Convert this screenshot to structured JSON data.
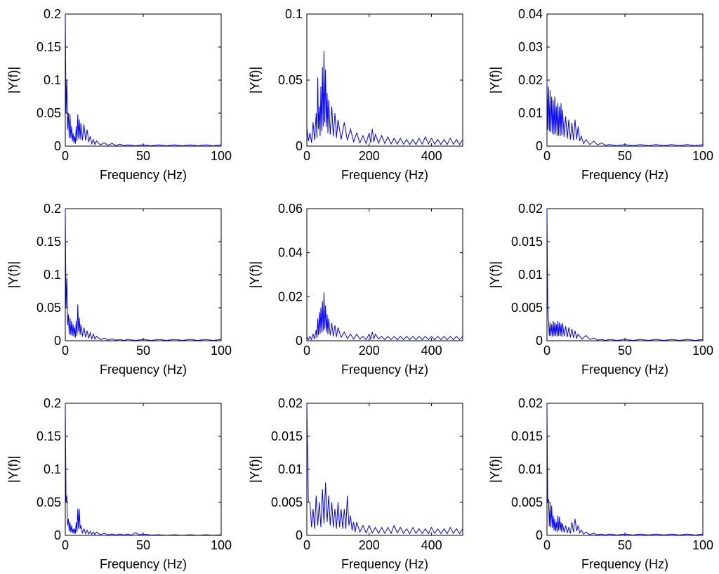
{
  "chart_data": [
    {
      "type": "line",
      "xlabel": "Frequency (Hz)",
      "ylabel": "|Y(f)|",
      "xlim": [
        0,
        100
      ],
      "ylim": [
        0,
        0.2
      ],
      "xticks": [
        "0",
        "50",
        "100"
      ],
      "yticks": [
        "0",
        "0.05",
        "0.1",
        "0.15",
        "0.2"
      ],
      "series": [
        {
          "color": "#0000ff",
          "x": [
            0,
            1,
            2,
            3,
            4,
            5,
            6,
            7,
            8,
            9,
            10,
            12,
            14,
            16,
            18,
            20,
            25,
            30,
            35,
            40,
            50,
            60,
            70,
            80,
            90,
            100
          ],
          "y": [
            0.2,
            0.1,
            0.05,
            0.049,
            0.03,
            0.02,
            0.015,
            0.03,
            0.048,
            0.04,
            0.035,
            0.033,
            0.025,
            0.015,
            0.01,
            0.008,
            0.005,
            0.004,
            0.003,
            0.002,
            0.002,
            0.002,
            0.002,
            0.002,
            0.002,
            0.002
          ]
        }
      ]
    },
    {
      "type": "line",
      "xlabel": "Frequency (Hz)",
      "ylabel": "|Y(f)|",
      "xlim": [
        0,
        500
      ],
      "ylim": [
        0,
        0.1
      ],
      "xticks": [
        "0",
        "200",
        "400"
      ],
      "yticks": [
        "0",
        "0.05",
        "0.1"
      ],
      "series": [
        {
          "color": "#0000ff",
          "x": [
            0,
            10,
            20,
            30,
            35,
            40,
            45,
            50,
            55,
            60,
            65,
            70,
            80,
            90,
            100,
            120,
            140,
            160,
            180,
            200,
            210,
            220,
            240,
            260,
            280,
            300,
            320,
            340,
            360,
            380,
            400,
            420,
            440,
            460,
            480,
            500
          ],
          "y": [
            0.015,
            0.01,
            0.018,
            0.025,
            0.052,
            0.03,
            0.045,
            0.06,
            0.072,
            0.058,
            0.04,
            0.035,
            0.03,
            0.025,
            0.02,
            0.018,
            0.013,
            0.01,
            0.008,
            0.01,
            0.013,
            0.009,
            0.008,
            0.007,
            0.006,
            0.006,
            0.005,
            0.005,
            0.006,
            0.007,
            0.006,
            0.005,
            0.005,
            0.006,
            0.005,
            0.005
          ]
        }
      ]
    },
    {
      "type": "line",
      "xlabel": "Frequency (Hz)",
      "ylabel": "|Y(f)|",
      "xlim": [
        0,
        100
      ],
      "ylim": [
        0,
        0.04
      ],
      "xticks": [
        "0",
        "50",
        "100"
      ],
      "yticks": [
        "0",
        "0.01",
        "0.02",
        "0.03",
        "0.04"
      ],
      "series": [
        {
          "color": "#0000ff",
          "x": [
            0,
            1,
            2,
            3,
            4,
            5,
            6,
            7,
            8,
            9,
            10,
            12,
            14,
            16,
            18,
            20,
            22,
            25,
            30,
            35,
            40,
            50,
            60,
            70,
            80,
            90,
            100
          ],
          "y": [
            0.02,
            0.018,
            0.017,
            0.015,
            0.014,
            0.015,
            0.012,
            0.013,
            0.012,
            0.013,
            0.011,
            0.009,
            0.008,
            0.007,
            0.008,
            0.006,
            0.003,
            0.002,
            0.0015,
            0.001,
            0.0005,
            0.0005,
            0.0005,
            0.0005,
            0.0005,
            0.0005,
            0.0005
          ]
        }
      ]
    },
    {
      "type": "line",
      "xlabel": "Frequency (Hz)",
      "ylabel": "|Y(f)|",
      "xlim": [
        0,
        100
      ],
      "ylim": [
        0,
        0.2
      ],
      "xticks": [
        "0",
        "50",
        "100"
      ],
      "yticks": [
        "0",
        "0.05",
        "0.1",
        "0.15",
        "0.2"
      ],
      "series": [
        {
          "color": "#0000ff",
          "x": [
            0,
            1,
            2,
            3,
            4,
            5,
            6,
            7,
            8,
            9,
            10,
            12,
            14,
            16,
            18,
            20,
            25,
            30,
            35,
            40,
            50,
            60,
            70,
            80,
            90,
            100
          ],
          "y": [
            0.2,
            0.095,
            0.04,
            0.035,
            0.03,
            0.025,
            0.02,
            0.03,
            0.055,
            0.035,
            0.025,
            0.02,
            0.015,
            0.012,
            0.01,
            0.007,
            0.004,
            0.003,
            0.002,
            0.002,
            0.002,
            0.002,
            0.002,
            0.002,
            0.002,
            0.002
          ]
        }
      ]
    },
    {
      "type": "line",
      "xlabel": "Frequency (Hz)",
      "ylabel": "|Y(f)|",
      "xlim": [
        0,
        500
      ],
      "ylim": [
        0,
        0.06
      ],
      "xticks": [
        "0",
        "200",
        "400"
      ],
      "yticks": [
        "0",
        "0.02",
        "0.04",
        "0.06"
      ],
      "series": [
        {
          "color": "#0000ff",
          "x": [
            0,
            10,
            20,
            30,
            35,
            40,
            45,
            50,
            55,
            60,
            65,
            70,
            80,
            90,
            100,
            120,
            140,
            160,
            180,
            200,
            210,
            220,
            240,
            260,
            280,
            300,
            320,
            340,
            360,
            380,
            400,
            420,
            440,
            460,
            480,
            500
          ],
          "y": [
            0.002,
            0.002,
            0.003,
            0.005,
            0.01,
            0.013,
            0.015,
            0.018,
            0.022,
            0.016,
            0.012,
            0.01,
            0.008,
            0.007,
            0.006,
            0.004,
            0.003,
            0.003,
            0.002,
            0.003,
            0.004,
            0.003,
            0.002,
            0.002,
            0.002,
            0.002,
            0.002,
            0.002,
            0.002,
            0.002,
            0.002,
            0.002,
            0.002,
            0.002,
            0.002,
            0.002
          ]
        }
      ]
    },
    {
      "type": "line",
      "xlabel": "Frequency (Hz)",
      "ylabel": "|Y(f)|",
      "xlim": [
        0,
        100
      ],
      "ylim": [
        0,
        0.02
      ],
      "xticks": [
        "0",
        "50",
        "100"
      ],
      "yticks": [
        "0",
        "0.005",
        "0.01",
        "0.015",
        "0.02"
      ],
      "series": [
        {
          "color": "#0000ff",
          "x": [
            0,
            1,
            2,
            3,
            4,
            5,
            6,
            7,
            8,
            9,
            10,
            12,
            14,
            16,
            18,
            20,
            25,
            30,
            35,
            40,
            50,
            60,
            70,
            80,
            90,
            100
          ],
          "y": [
            0.02,
            0.003,
            0.0028,
            0.0025,
            0.003,
            0.0028,
            0.0025,
            0.003,
            0.0028,
            0.0025,
            0.0027,
            0.0022,
            0.002,
            0.0018,
            0.0015,
            0.001,
            0.0008,
            0.0004,
            0.0002,
            0.0002,
            0.0002,
            0.0002,
            0.0002,
            0.0002,
            0.0002,
            0.0002
          ]
        }
      ]
    },
    {
      "type": "line",
      "xlabel": "Frequency (Hz)",
      "ylabel": "|Y(f)|",
      "xlim": [
        0,
        100
      ],
      "ylim": [
        0,
        0.2
      ],
      "xticks": [
        "0",
        "50",
        "100"
      ],
      "yticks": [
        "0",
        "0.05",
        "0.1",
        "0.15",
        "0.2"
      ],
      "series": [
        {
          "color": "#0000ff",
          "x": [
            0,
            1,
            2,
            3,
            4,
            5,
            6,
            7,
            8,
            9,
            10,
            12,
            14,
            16,
            18,
            20,
            25,
            30,
            35,
            40,
            45,
            50,
            60,
            70,
            80,
            90,
            100
          ],
          "y": [
            0.2,
            0.06,
            0.025,
            0.02,
            0.015,
            0.01,
            0.01,
            0.02,
            0.04,
            0.04,
            0.015,
            0.01,
            0.008,
            0.006,
            0.005,
            0.005,
            0.003,
            0.002,
            0.002,
            0.002,
            0.004,
            0.002,
            0.001,
            0.001,
            0.001,
            0.001,
            0.001
          ]
        }
      ]
    },
    {
      "type": "line",
      "xlabel": "Frequency (Hz)",
      "ylabel": "|Y(f)|",
      "xlim": [
        0,
        500
      ],
      "ylim": [
        0,
        0.02
      ],
      "xticks": [
        "0",
        "200",
        "400"
      ],
      "yticks": [
        "0",
        "0.005",
        "0.01",
        "0.015",
        "0.02"
      ],
      "series": [
        {
          "color": "#0000ff",
          "x": [
            0,
            10,
            20,
            30,
            40,
            50,
            60,
            70,
            80,
            90,
            100,
            110,
            120,
            130,
            140,
            150,
            160,
            180,
            200,
            220,
            240,
            260,
            280,
            300,
            320,
            340,
            360,
            380,
            400,
            420,
            440,
            460,
            480,
            500
          ],
          "y": [
            0.02,
            0.005,
            0.004,
            0.006,
            0.005,
            0.007,
            0.008,
            0.006,
            0.005,
            0.004,
            0.005,
            0.004,
            0.004,
            0.006,
            0.003,
            0.002,
            0.002,
            0.0015,
            0.0015,
            0.0012,
            0.0012,
            0.0012,
            0.0015,
            0.0012,
            0.001,
            0.0012,
            0.001,
            0.001,
            0.0012,
            0.001,
            0.001,
            0.0012,
            0.001,
            0.001
          ]
        }
      ]
    },
    {
      "type": "line",
      "xlabel": "Frequency (Hz)",
      "ylabel": "|Y(f)|",
      "xlim": [
        0,
        100
      ],
      "ylim": [
        0,
        0.02
      ],
      "xticks": [
        "0",
        "50",
        "100"
      ],
      "yticks": [
        "0",
        "0.005",
        "0.01",
        "0.015",
        "0.02"
      ],
      "series": [
        {
          "color": "#0000ff",
          "x": [
            0,
            1,
            2,
            3,
            4,
            5,
            6,
            7,
            8,
            9,
            10,
            12,
            14,
            16,
            18,
            20,
            22,
            25,
            30,
            35,
            40,
            50,
            60,
            70,
            80,
            90,
            100
          ],
          "y": [
            0.02,
            0.0055,
            0.005,
            0.0045,
            0.003,
            0.0025,
            0.002,
            0.003,
            0.0028,
            0.002,
            0.0018,
            0.0015,
            0.0012,
            0.002,
            0.0025,
            0.0015,
            0.0008,
            0.0005,
            0.0003,
            0.0002,
            0.0002,
            0.0002,
            0.0002,
            0.0002,
            0.0002,
            0.0002,
            0.0002
          ]
        }
      ]
    }
  ]
}
